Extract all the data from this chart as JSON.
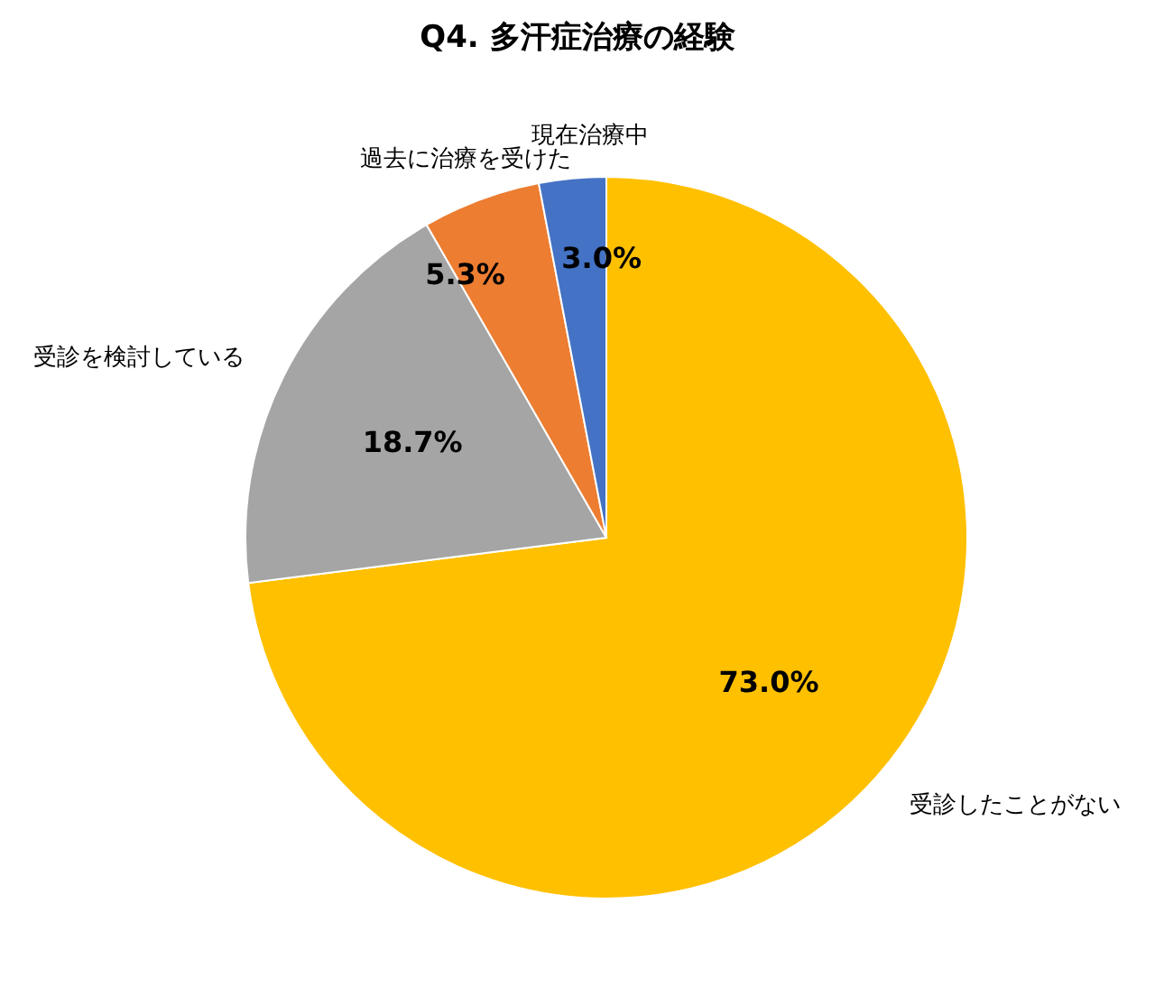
{
  "chart_data": {
    "type": "pie",
    "title": "Q4. 多汗症治療の経験",
    "categories": [
      "受診したことがない",
      "受診を検討している",
      "過去に治療を受けた",
      "現在治療中"
    ],
    "values": [
      73.0,
      18.7,
      5.3,
      3.0
    ],
    "colors": [
      "#ffc000",
      "#a5a5a5",
      "#ed7d31",
      "#4472c4"
    ],
    "value_labels": [
      "73.0%",
      "18.7%",
      "5.3%",
      "3.0%"
    ]
  }
}
